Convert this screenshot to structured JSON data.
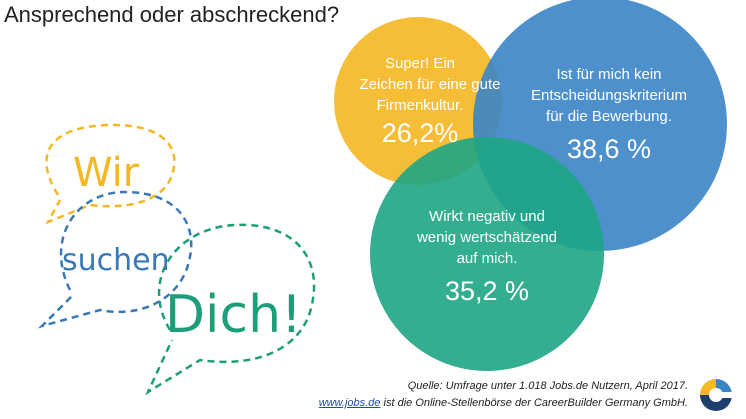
{
  "title": "Ansprechend oder abschreckend?",
  "chart_data": {
    "type": "venn",
    "unit": "%",
    "segments": [
      {
        "id": "positive",
        "label_lines": [
          "Super! Ein",
          "Zeichen für eine gute",
          "Firmenkultur."
        ],
        "value_label": "26,2%",
        "value": 26.2,
        "color": "#f5b726"
      },
      {
        "id": "neutral",
        "label_lines": [
          "Ist für mich kein",
          "Entscheidungskriterium",
          "für die Bewerbung."
        ],
        "value_label": "38,6 %",
        "value": 38.6,
        "color": "#3a84c6"
      },
      {
        "id": "negative",
        "label_lines": [
          "Wirkt negativ und",
          "wenig wertschätzend",
          "auf mich."
        ],
        "value_label": "35,2 %",
        "value": 35.2,
        "color": "#1ea585"
      }
    ]
  },
  "bubbles": {
    "word1": "Wir",
    "word2": "suchen",
    "word3": "Dich!",
    "colors": {
      "yellow": "#f5b726",
      "blue": "#3a78b8",
      "green": "#1e9e78"
    }
  },
  "source": {
    "line1": "Quelle: Umfrage unter 1.018 Jobs.de Nutzern, April 2017.",
    "link_text": "www.jobs.de",
    "line2_rest": " ist die Online-Stellenbörse der CareerBuilder Germany GmbH."
  },
  "logo": {
    "icon": "careerbuilder-logo",
    "colors": [
      "#f5b726",
      "#3a84c6",
      "#1e3f6e"
    ]
  }
}
